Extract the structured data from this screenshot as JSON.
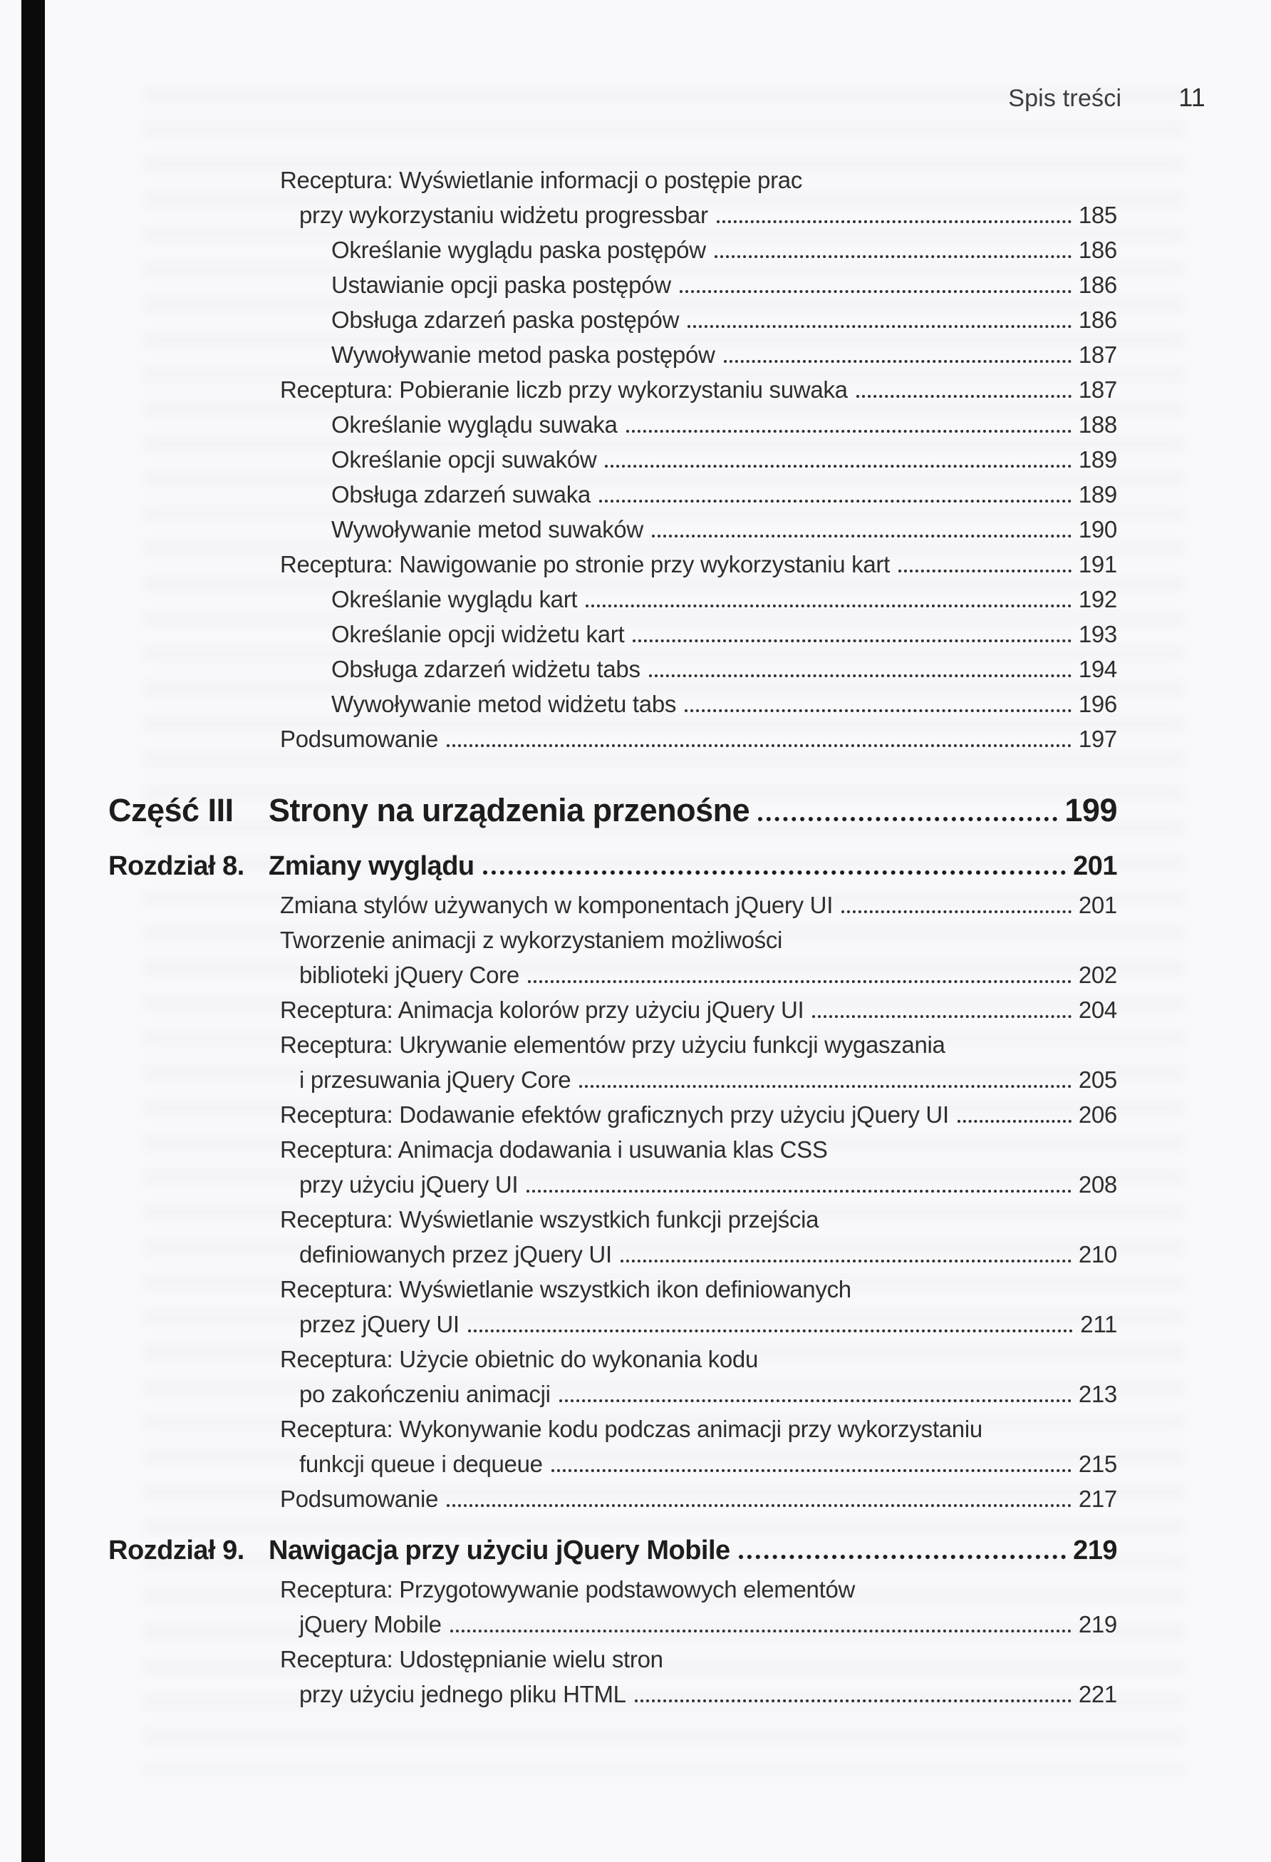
{
  "page": {
    "header": {
      "section_title": "Spis treści",
      "page_number": "11"
    },
    "colors": {
      "text": "#2e2e2e",
      "heading": "#1d1d1d",
      "background": "#f9f9fb",
      "scan_bar": "#0b0b0b"
    },
    "toc": {
      "rows": [
        {
          "type": "l1",
          "text": "Receptura: Wyświetlanie informacji o postępie prac"
        },
        {
          "type": "l1c",
          "text": "przy wykorzystaniu widżetu progressbar",
          "page": "185"
        },
        {
          "type": "l2",
          "text": "Określanie wyglądu paska postępów",
          "page": "186"
        },
        {
          "type": "l2",
          "text": "Ustawianie opcji paska postępów",
          "page": "186"
        },
        {
          "type": "l2",
          "text": "Obsługa zdarzeń paska postępów",
          "page": "186"
        },
        {
          "type": "l2",
          "text": "Wywoływanie metod paska postępów",
          "page": "187"
        },
        {
          "type": "l1",
          "text": "Receptura: Pobieranie liczb przy wykorzystaniu suwaka",
          "page": "187"
        },
        {
          "type": "l2",
          "text": "Określanie wyglądu suwaka",
          "page": "188"
        },
        {
          "type": "l2",
          "text": "Określanie opcji suwaków",
          "page": "189"
        },
        {
          "type": "l2",
          "text": "Obsługa zdarzeń suwaka",
          "page": "189"
        },
        {
          "type": "l2",
          "text": "Wywoływanie metod suwaków",
          "page": "190"
        },
        {
          "type": "l1",
          "text": "Receptura: Nawigowanie po stronie przy wykorzystaniu kart",
          "page": "191"
        },
        {
          "type": "l2",
          "text": "Określanie wyglądu kart",
          "page": "192"
        },
        {
          "type": "l2",
          "text": "Określanie opcji widżetu kart",
          "page": "193"
        },
        {
          "type": "l2",
          "text": "Obsługa zdarzeń widżetu tabs",
          "page": "194"
        },
        {
          "type": "l2",
          "text": "Wywoływanie metod widżetu tabs",
          "page": "196"
        },
        {
          "type": "l1",
          "text": "Podsumowanie",
          "page": "197"
        },
        {
          "type": "part",
          "label": "Część III",
          "text": "Strony na urządzenia przenośne",
          "page": "199"
        },
        {
          "type": "chapter",
          "label": "Rozdział 8.",
          "text": "Zmiany wyglądu",
          "page": "201"
        },
        {
          "type": "l1",
          "text": "Zmiana stylów używanych w komponentach jQuery UI",
          "page": "201"
        },
        {
          "type": "l1",
          "text": "Tworzenie animacji z wykorzystaniem możliwości"
        },
        {
          "type": "l1c",
          "text": "biblioteki jQuery Core",
          "page": "202"
        },
        {
          "type": "l1",
          "text": "Receptura: Animacja kolorów przy użyciu jQuery UI",
          "page": "204"
        },
        {
          "type": "l1",
          "text": "Receptura: Ukrywanie elementów przy użyciu funkcji wygaszania"
        },
        {
          "type": "l1c",
          "text": "i przesuwania jQuery Core",
          "page": "205"
        },
        {
          "type": "l1",
          "text": "Receptura: Dodawanie efektów graficznych przy użyciu jQuery UI",
          "page": "206"
        },
        {
          "type": "l1",
          "text": "Receptura: Animacja dodawania i usuwania klas CSS"
        },
        {
          "type": "l1c",
          "text": "przy użyciu jQuery UI",
          "page": "208"
        },
        {
          "type": "l1",
          "text": "Receptura: Wyświetlanie wszystkich funkcji przejścia"
        },
        {
          "type": "l1c",
          "text": "definiowanych przez jQuery UI",
          "page": "210"
        },
        {
          "type": "l1",
          "text": "Receptura: Wyświetlanie wszystkich ikon definiowanych"
        },
        {
          "type": "l1c",
          "text": "przez jQuery UI",
          "page": "211"
        },
        {
          "type": "l1",
          "text": "Receptura: Użycie obietnic do wykonania kodu"
        },
        {
          "type": "l1c",
          "text": "po zakończeniu animacji",
          "page": "213"
        },
        {
          "type": "l1",
          "text": "Receptura: Wykonywanie kodu podczas animacji przy wykorzystaniu"
        },
        {
          "type": "l1c",
          "text": "funkcji queue i dequeue",
          "page": "215"
        },
        {
          "type": "l1",
          "text": "Podsumowanie",
          "page": "217"
        },
        {
          "type": "chapter",
          "label": "Rozdział 9.",
          "text": "Nawigacja przy użyciu jQuery Mobile",
          "page": "219"
        },
        {
          "type": "l1",
          "text": "Receptura: Przygotowywanie podstawowych elementów"
        },
        {
          "type": "l1c",
          "text": "jQuery Mobile",
          "page": "219"
        },
        {
          "type": "l1",
          "text": "Receptura: Udostępnianie wielu stron"
        },
        {
          "type": "l1c",
          "text": "przy użyciu jednego pliku HTML",
          "page": "221"
        }
      ]
    }
  }
}
